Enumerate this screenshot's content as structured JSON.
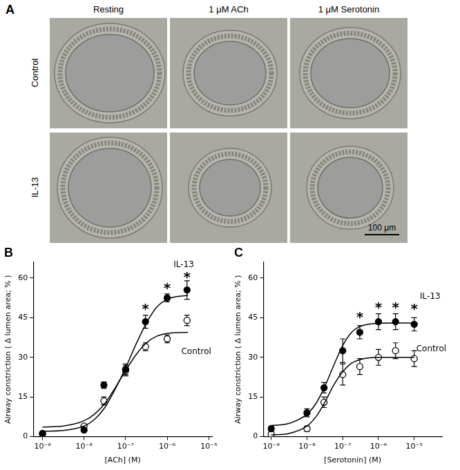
{
  "panel_a": {
    "panel": "A",
    "columns": [
      "Resting",
      "1 μM ACh",
      "1 μM Serotonin"
    ],
    "rows": [
      "Control",
      "IL-13"
    ],
    "scale_bar": "100 μm"
  },
  "chart_data": [
    {
      "panel": "B",
      "type": "scatter",
      "x_label": "[ACh] (M)",
      "y_label": "Airway constriction ( Δ lumen area; % )",
      "log": "x",
      "grid": false,
      "xlim": [
        6e-10,
        1.2e-05
      ],
      "xticks": [
        {
          "value": 1e-09,
          "label": "10⁻⁹"
        },
        {
          "value": 1e-08,
          "label": "10⁻⁸"
        },
        {
          "value": 1e-07,
          "label": "10⁻⁷"
        },
        {
          "value": 1e-06,
          "label": "10⁻⁶"
        },
        {
          "value": 1e-05,
          "label": "10⁻⁵"
        }
      ],
      "ylim": [
        0,
        66
      ],
      "yticks": [
        0,
        15,
        30,
        45,
        60
      ],
      "series": [
        {
          "name": "IL-13",
          "color": "#000000",
          "marker": "filled_circle",
          "x": [
            1e-09,
            1e-08,
            3e-08,
            1e-07,
            3e-07,
            1e-06,
            3e-06
          ],
          "values": [
            1.2,
            2.5,
            19.5,
            25.5,
            43.5,
            52.5,
            55.5
          ],
          "errors": [
            0.5,
            0.5,
            1.2,
            2,
            2.5,
            1.5,
            3.5
          ],
          "label_at": {
            "x": 2.5e-06,
            "y": 65
          }
        },
        {
          "name": "Control",
          "color": "#000000",
          "marker": "open_circle",
          "x": [
            1e-09,
            1e-08,
            3e-08,
            1e-07,
            3e-07,
            1e-06,
            3e-06
          ],
          "values": [
            1.0,
            4.0,
            13.5,
            25,
            34,
            37,
            44
          ],
          "errors": [
            0.5,
            0.5,
            1.5,
            2,
            1.5,
            1.5,
            2
          ],
          "label_at": {
            "x": 5e-06,
            "y": 32
          }
        }
      ],
      "fits": [
        {
          "color": "#000000",
          "line_style": "solid",
          "x": [
            1e-09,
            3.16e-09,
            1e-08,
            1.78e-08,
            3.16e-08,
            5.62e-08,
            1e-07,
            1.78e-07,
            3.16e-07,
            5.62e-07,
            1e-06,
            3.16e-06
          ],
          "values": [
            2.0,
            2.3,
            4,
            6.5,
            11,
            18,
            26,
            35,
            43,
            49,
            52,
            53.5
          ]
        },
        {
          "color": "#000000",
          "line_style": "solid",
          "x": [
            1e-09,
            3.16e-09,
            1e-08,
            1.78e-08,
            3.16e-08,
            5.62e-08,
            1e-07,
            1.78e-07,
            3.16e-07,
            5.62e-07,
            1e-06,
            3.16e-06
          ],
          "values": [
            3.6,
            4,
            6,
            8.5,
            12.5,
            18.5,
            25,
            31,
            35.5,
            38,
            39,
            39.5
          ]
        }
      ],
      "annotations": [
        {
          "text": "*",
          "x": 3e-07,
          "y": 49
        },
        {
          "text": "*",
          "x": 1e-06,
          "y": 57
        },
        {
          "text": "*",
          "x": 3e-06,
          "y": 61
        }
      ]
    },
    {
      "panel": "C",
      "type": "scatter",
      "x_label": "[Serotonin] (M)",
      "y_label": "Airway constriction ( Δ lumen area; % )",
      "log": "x",
      "grid": false,
      "xlim": [
        6e-10,
        6e-05
      ],
      "xticks": [
        {
          "value": 1e-09,
          "label": "10⁻⁹"
        },
        {
          "value": 1e-08,
          "label": "10⁻⁸"
        },
        {
          "value": 1e-07,
          "label": "10⁻⁷"
        },
        {
          "value": 1e-06,
          "label": "10⁻⁶"
        },
        {
          "value": 1e-05,
          "label": "10⁻⁵"
        }
      ],
      "ylim": [
        0,
        66
      ],
      "yticks": [
        0,
        15,
        30,
        45,
        60
      ],
      "series": [
        {
          "name": "IL-13",
          "color": "#000000",
          "marker": "filled_circle",
          "x": [
            1e-09,
            1e-08,
            3e-08,
            1e-07,
            3e-07,
            1e-06,
            3e-06,
            1e-05
          ],
          "values": [
            3.0,
            9.0,
            18.5,
            32.5,
            39.5,
            43.5,
            43.5,
            42.5
          ],
          "errors": [
            1,
            1.5,
            2,
            4.5,
            2.5,
            3,
            3,
            2.5
          ],
          "label_at": {
            "x": 2.8e-05,
            "y": 53
          }
        },
        {
          "name": "Control",
          "color": "#000000",
          "marker": "open_circle",
          "x": [
            1e-09,
            1e-08,
            3e-08,
            1e-07,
            3e-07,
            1e-06,
            3e-06,
            1e-05
          ],
          "values": [
            1.0,
            3.0,
            13.0,
            23.5,
            26.5,
            30,
            32.5,
            29.5
          ],
          "errors": [
            0.5,
            1,
            2,
            4,
            3,
            3,
            3,
            3
          ],
          "label_at": {
            "x": 3e-05,
            "y": 33
          }
        }
      ],
      "fits": [
        {
          "color": "#000000",
          "line_style": "solid",
          "x": [
            1e-09,
            3.16e-09,
            1e-08,
            1.78e-08,
            3.16e-08,
            5.62e-08,
            1e-07,
            1.78e-07,
            3.16e-07,
            5.62e-07,
            1e-06,
            3.16e-06,
            1e-05
          ],
          "values": [
            4.2,
            5,
            8.5,
            12.5,
            19,
            27,
            34.5,
            39.5,
            41.8,
            42.6,
            42.9,
            43,
            43
          ]
        },
        {
          "color": "#000000",
          "line_style": "solid",
          "x": [
            1e-09,
            3.16e-09,
            1e-08,
            1.78e-08,
            3.16e-08,
            5.62e-08,
            1e-07,
            1.78e-07,
            3.16e-07,
            5.62e-07,
            1e-06,
            3.16e-06,
            1e-05
          ],
          "values": [
            0.6,
            1.2,
            4,
            7.5,
            13,
            19.5,
            24.5,
            27.8,
            29.2,
            29.8,
            30,
            30,
            30
          ]
        }
      ],
      "annotations": [
        {
          "text": "*",
          "x": 3e-07,
          "y": 46
        },
        {
          "text": "*",
          "x": 1e-06,
          "y": 49.5
        },
        {
          "text": "*",
          "x": 3e-06,
          "y": 49.5
        },
        {
          "text": "*",
          "x": 1e-05,
          "y": 49
        }
      ]
    }
  ]
}
